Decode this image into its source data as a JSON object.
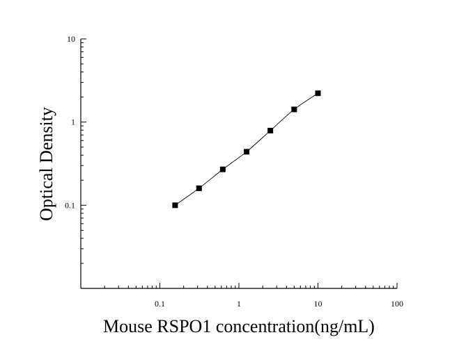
{
  "chart_data": {
    "type": "scatter",
    "title": "",
    "xlabel": "Mouse RSPO1 concentration(ng/mL)",
    "ylabel": "Optical Density",
    "xscale": "log",
    "yscale": "log",
    "xlim": [
      0.01,
      100
    ],
    "ylim": [
      0.01,
      10
    ],
    "x_ticks": [
      {
        "value": 0.1,
        "label": "0.1"
      },
      {
        "value": 1,
        "label": "1"
      },
      {
        "value": 10,
        "label": "10"
      },
      {
        "value": 100,
        "label": "100"
      }
    ],
    "y_ticks": [
      {
        "value": 0.1,
        "label": "0.1"
      },
      {
        "value": 1,
        "label": "1"
      },
      {
        "value": 10,
        "label": "10"
      }
    ],
    "grid": false,
    "legend": "none",
    "series": [
      {
        "x": [
          0.156,
          0.313,
          0.625,
          1.25,
          2.5,
          5,
          10
        ],
        "y": [
          0.1,
          0.16,
          0.27,
          0.44,
          0.79,
          1.42,
          2.22
        ]
      }
    ],
    "fit_curve": true
  }
}
